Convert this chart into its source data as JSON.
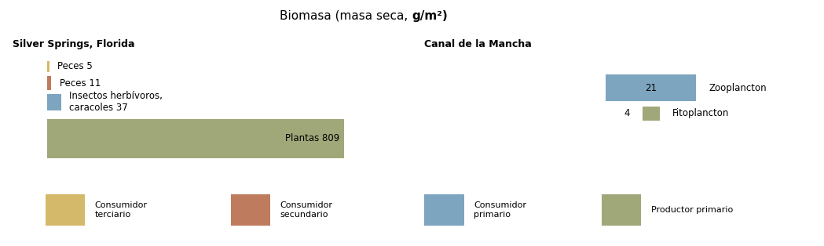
{
  "title": "Biomasa (masa seca, g/m²)",
  "title_bg": "#b2c4cb",
  "panel_bg": "#ffffff",
  "fig_bg": "#ffffff",
  "left_title": "Silver Springs, Florida",
  "right_title": "Canal de la Mancha",
  "colors": {
    "consumidor_terciario": "#d4b96a",
    "consumidor_secundario": "#bf7b5e",
    "consumidor_primario": "#7da5c0",
    "productor_primario": "#a0a87a"
  },
  "legend": [
    {
      "label": "Consumidor\nterciario",
      "color": "#d4b96a"
    },
    {
      "label": "Consumidor\nsecundario",
      "color": "#bf7b5e"
    },
    {
      "label": "Consumidor\nprimario",
      "color": "#7da5c0"
    },
    {
      "label": "Productor primario",
      "color": "#a0a87a"
    }
  ],
  "left_bars": [
    {
      "label": "Plantas",
      "value": 809,
      "color": "#a0a87a"
    },
    {
      "label": "Insectos herbívoros,\ncaracoles",
      "value": 37,
      "color": "#7da5c0"
    },
    {
      "label": "Peces",
      "value": 11,
      "color": "#bf7b5e"
    },
    {
      "label": "Peces",
      "value": 5,
      "color": "#d4b96a"
    }
  ],
  "right_bars": [
    {
      "label": "Fitoplancton",
      "value": 4,
      "color": "#a0a87a"
    },
    {
      "label": "Zooplancton",
      "value": 21,
      "color": "#7da5c0"
    }
  ],
  "title_fontsize": 11,
  "panel_title_fontsize": 9,
  "bar_label_fontsize": 8.5
}
